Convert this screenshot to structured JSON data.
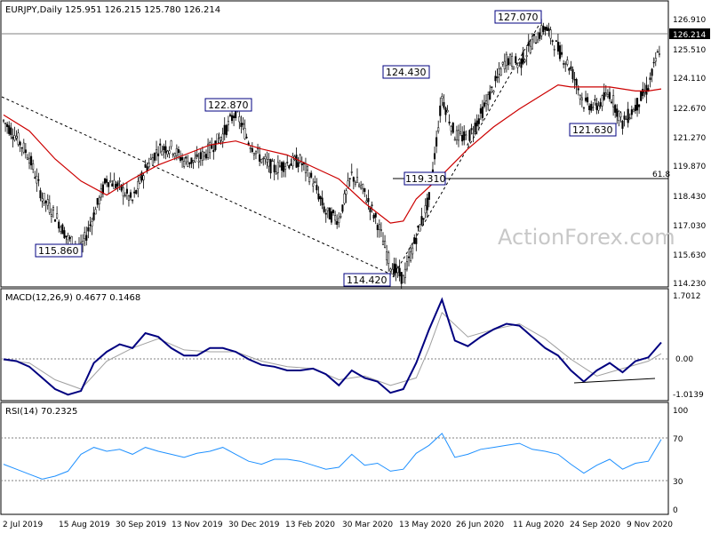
{
  "chart_data": [
    {
      "type": "candlestick",
      "title": "EURJPY,Daily  125.951 126.215 125.780 126.214",
      "watermark": "ActionForex.com",
      "ylim": [
        114.23,
        127.5
      ],
      "y_ticks": [
        "126.910",
        "125.510",
        "124.110",
        "122.670",
        "121.270",
        "119.870",
        "118.430",
        "117.030",
        "115.630",
        "114.230"
      ],
      "current_price": "126.214",
      "series": [
        {
          "name": "price",
          "x": [
            0,
            7,
            14,
            21,
            28,
            35,
            42,
            49,
            56,
            63,
            70,
            77,
            84,
            91,
            98,
            105,
            112,
            119,
            126,
            133,
            140,
            147,
            154,
            161,
            168,
            175,
            182,
            189,
            196,
            203,
            210,
            217,
            224,
            231,
            238,
            245,
            252,
            259,
            266,
            273,
            280,
            287,
            294,
            301,
            308,
            315,
            322,
            329,
            336,
            343,
            350,
            357
          ],
          "values": [
            122.3,
            121.5,
            120.5,
            118.5,
            117.6,
            116.4,
            115.9,
            117.6,
            119.4,
            119.0,
            118.3,
            119.9,
            120.9,
            121.0,
            120.3,
            120.3,
            120.9,
            121.6,
            122.8,
            121.3,
            120.4,
            119.9,
            120.2,
            120.3,
            119.3,
            117.7,
            117.4,
            119.6,
            118.7,
            117.2,
            115.1,
            114.4,
            116.5,
            118.4,
            123.5,
            121.6,
            121.4,
            122.6,
            124.0,
            125.4,
            125.1,
            126.2,
            127.0,
            125.9,
            124.9,
            123.2,
            123.0,
            123.7,
            122.2,
            123.0,
            124.0,
            126.2
          ]
        },
        {
          "name": "SMA",
          "x": [
            0,
            14,
            28,
            42,
            56,
            70,
            84,
            98,
            112,
            126,
            140,
            154,
            168,
            182,
            196,
            210,
            217,
            224,
            238,
            252,
            266,
            280,
            294,
            301,
            308,
            315,
            322,
            329,
            336,
            343,
            350,
            357
          ],
          "values": [
            122.6,
            121.8,
            120.4,
            119.3,
            118.6,
            119.4,
            120.1,
            120.6,
            121.1,
            121.3,
            120.9,
            120.6,
            120.0,
            119.4,
            118.2,
            117.2,
            117.3,
            118.4,
            119.6,
            120.9,
            122.0,
            122.9,
            123.7,
            124.1,
            124.0,
            124.0,
            124.0,
            124.0,
            123.9,
            123.8,
            123.8,
            123.9
          ]
        }
      ],
      "annotations": [
        {
          "label": "115.860"
        },
        {
          "label": "122.870"
        },
        {
          "label": "114.420"
        },
        {
          "label": "124.430"
        },
        {
          "label": "119.310"
        },
        {
          "label": "127.070"
        },
        {
          "label": "121.630"
        },
        {
          "label": "61.8"
        }
      ],
      "fib_level": 119.31
    },
    {
      "type": "line",
      "title": "MACD(12,26,9) 0.4677 0.1468",
      "ylim": [
        -1.0139,
        1.7012
      ],
      "y_ticks": [
        "1.7012",
        "0.00",
        "-1.0139"
      ],
      "series": [
        {
          "name": "MACD",
          "x": [
            0,
            7,
            14,
            21,
            28,
            35,
            42,
            49,
            56,
            63,
            70,
            77,
            84,
            91,
            98,
            105,
            112,
            119,
            126,
            133,
            140,
            147,
            154,
            161,
            168,
            175,
            182,
            189,
            196,
            203,
            210,
            217,
            224,
            231,
            238,
            245,
            252,
            259,
            266,
            273,
            280,
            287,
            294,
            301,
            308,
            315,
            322,
            329,
            336,
            343,
            350,
            357
          ],
          "values": [
            0.0,
            -0.05,
            -0.2,
            -0.5,
            -0.8,
            -0.95,
            -0.85,
            -0.1,
            0.2,
            0.4,
            0.3,
            0.7,
            0.6,
            0.3,
            0.1,
            0.1,
            0.3,
            0.3,
            0.2,
            0.0,
            -0.15,
            -0.2,
            -0.3,
            -0.3,
            -0.25,
            -0.4,
            -0.7,
            -0.3,
            -0.5,
            -0.6,
            -0.9,
            -0.8,
            -0.1,
            0.8,
            1.6,
            0.5,
            0.35,
            0.6,
            0.8,
            0.95,
            0.9,
            0.6,
            0.3,
            0.1,
            -0.3,
            -0.6,
            -0.3,
            -0.1,
            -0.35,
            -0.05,
            0.05,
            0.45
          ]
        },
        {
          "name": "Signal",
          "x": [
            0,
            14,
            28,
            42,
            56,
            70,
            84,
            98,
            112,
            126,
            140,
            154,
            168,
            182,
            196,
            210,
            224,
            231,
            238,
            252,
            266,
            280,
            294,
            308,
            322,
            336,
            350,
            357
          ],
          "values": [
            -0.02,
            -0.1,
            -0.55,
            -0.8,
            -0.05,
            0.3,
            0.55,
            0.25,
            0.2,
            0.2,
            -0.05,
            -0.2,
            -0.25,
            -0.55,
            -0.45,
            -0.7,
            -0.5,
            0.3,
            1.25,
            0.6,
            0.8,
            0.95,
            0.55,
            0.0,
            -0.45,
            -0.25,
            -0.05,
            0.15
          ]
        }
      ]
    },
    {
      "type": "line",
      "title": "RSI(14) 70.2325",
      "ylim": [
        0,
        100
      ],
      "y_ticks": [
        "100",
        "70",
        "30",
        "0"
      ],
      "series": [
        {
          "name": "RSI",
          "x": [
            0,
            7,
            14,
            21,
            28,
            35,
            42,
            49,
            56,
            63,
            70,
            77,
            84,
            91,
            98,
            105,
            112,
            119,
            126,
            133,
            140,
            147,
            154,
            161,
            168,
            175,
            182,
            189,
            196,
            203,
            210,
            217,
            224,
            231,
            238,
            245,
            252,
            259,
            266,
            273,
            280,
            287,
            294,
            301,
            308,
            315,
            322,
            329,
            336,
            343,
            350,
            357
          ],
          "values": [
            45,
            40,
            35,
            30,
            33,
            38,
            55,
            62,
            58,
            60,
            55,
            62,
            58,
            55,
            52,
            56,
            58,
            62,
            55,
            48,
            45,
            50,
            50,
            48,
            44,
            40,
            42,
            55,
            44,
            46,
            38,
            40,
            56,
            64,
            76,
            52,
            55,
            60,
            62,
            64,
            66,
            60,
            58,
            55,
            45,
            36,
            44,
            50,
            40,
            46,
            48,
            70
          ]
        }
      ]
    }
  ],
  "x_axis_labels": [
    "2 Jul 2019",
    "15 Aug 2019",
    "30 Sep 2019",
    "13 Nov 2019",
    "30 Dec 2019",
    "13 Feb 2020",
    "30 Mar 2020",
    "13 May 2020",
    "26 Jun 2020",
    "11 Aug 2020",
    "24 Sep 2020",
    "9 Nov 2020"
  ],
  "colors": {
    "price": "#000000",
    "sma": "#cc0000",
    "macd": "#000080",
    "signal": "#a0a0a0",
    "rsi": "#1e90ff",
    "label_border": "#000080"
  }
}
